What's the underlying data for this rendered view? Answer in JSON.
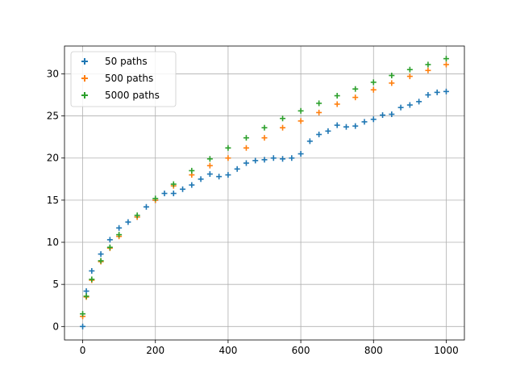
{
  "chart_data": {
    "type": "scatter",
    "marker": "plus",
    "xlim": [
      -50,
      1050
    ],
    "ylim": [
      -1.6,
      33.3
    ],
    "x_ticks": [
      0,
      200,
      400,
      600,
      800,
      1000
    ],
    "x_tick_labels": [
      "0",
      "200",
      "400",
      "600",
      "800",
      "1000"
    ],
    "y_ticks": [
      0,
      5,
      10,
      15,
      20,
      25,
      30
    ],
    "y_tick_labels": [
      "0",
      "5",
      "10",
      "15",
      "20",
      "25",
      "30"
    ],
    "grid": true,
    "legend_position": "top-left",
    "series": [
      {
        "name": "50 paths",
        "color": "#1f77b4",
        "x": [
          0,
          10,
          25,
          50,
          75,
          100,
          125,
          150,
          175,
          200,
          225,
          250,
          275,
          300,
          325,
          350,
          375,
          400,
          425,
          450,
          475,
          500,
          525,
          550,
          575,
          600,
          625,
          650,
          675,
          700,
          725,
          750,
          775,
          800,
          825,
          850,
          875,
          900,
          925,
          950,
          975,
          1000
        ],
        "y": [
          0,
          4.2,
          6.6,
          8.6,
          10.3,
          11.7,
          12.4,
          13.0,
          14.2,
          15.0,
          15.8,
          15.8,
          16.3,
          16.8,
          17.5,
          18.1,
          17.8,
          18.0,
          18.7,
          19.4,
          19.7,
          19.8,
          20.0,
          19.9,
          20.0,
          20.5,
          22.0,
          22.8,
          23.2,
          23.9,
          23.7,
          23.8,
          24.3,
          24.6,
          25.1,
          25.2,
          26.0,
          26.3,
          26.7,
          27.5,
          27.8,
          27.9
        ]
      },
      {
        "name": "500 paths",
        "color": "#ff7f0e",
        "x": [
          0,
          10,
          25,
          50,
          75,
          100,
          150,
          200,
          250,
          300,
          350,
          400,
          450,
          500,
          550,
          600,
          650,
          700,
          750,
          800,
          850,
          900,
          950,
          1000
        ],
        "y": [
          1.2,
          3.5,
          5.5,
          7.7,
          9.3,
          10.7,
          13.0,
          15.0,
          16.7,
          18.0,
          19.1,
          20.0,
          21.2,
          22.4,
          23.6,
          24.4,
          25.4,
          26.4,
          27.2,
          28.1,
          28.9,
          29.7,
          30.4,
          31.1
        ]
      },
      {
        "name": "5000 paths",
        "color": "#2ca02c",
        "x": [
          0,
          10,
          25,
          50,
          75,
          100,
          150,
          200,
          250,
          300,
          350,
          400,
          450,
          500,
          550,
          600,
          650,
          700,
          750,
          800,
          850,
          900,
          950,
          1000
        ],
        "y": [
          1.5,
          3.6,
          5.6,
          7.8,
          9.4,
          10.9,
          13.2,
          15.2,
          16.9,
          18.5,
          19.9,
          21.2,
          22.4,
          23.6,
          24.7,
          25.6,
          26.5,
          27.4,
          28.2,
          29.0,
          29.8,
          30.5,
          31.1,
          31.8
        ]
      }
    ]
  }
}
